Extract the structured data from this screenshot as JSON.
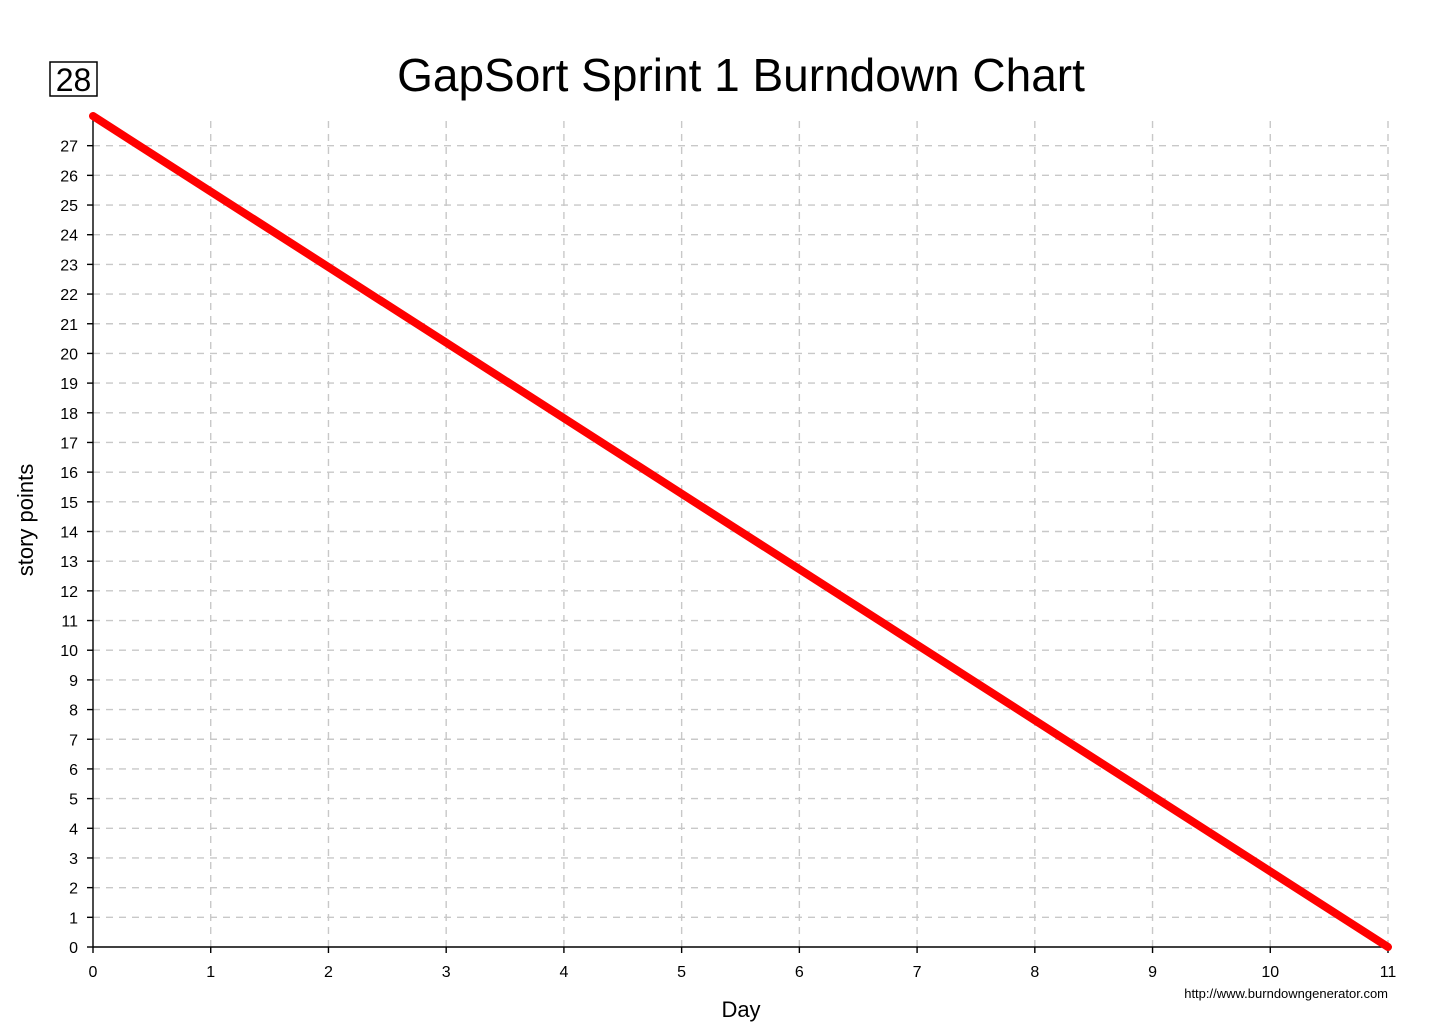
{
  "chart_data": {
    "type": "line",
    "title": "GapSort Sprint 1 Burndown Chart",
    "xlabel": "Day",
    "ylabel": "story points",
    "max_badge": "28",
    "credit": "http://www.burndowngenerator.com",
    "xlim": [
      0,
      11
    ],
    "ylim": [
      0,
      28
    ],
    "x_ticks": [
      0,
      1,
      2,
      3,
      4,
      5,
      6,
      7,
      8,
      9,
      10,
      11
    ],
    "y_ticks": [
      0,
      1,
      2,
      3,
      4,
      5,
      6,
      7,
      8,
      9,
      10,
      11,
      12,
      13,
      14,
      15,
      16,
      17,
      18,
      19,
      20,
      21,
      22,
      23,
      24,
      25,
      26,
      27
    ],
    "grid": true,
    "series": [
      {
        "color": "#ff0000",
        "x": [
          0,
          11
        ],
        "y": [
          28,
          0
        ]
      }
    ]
  }
}
